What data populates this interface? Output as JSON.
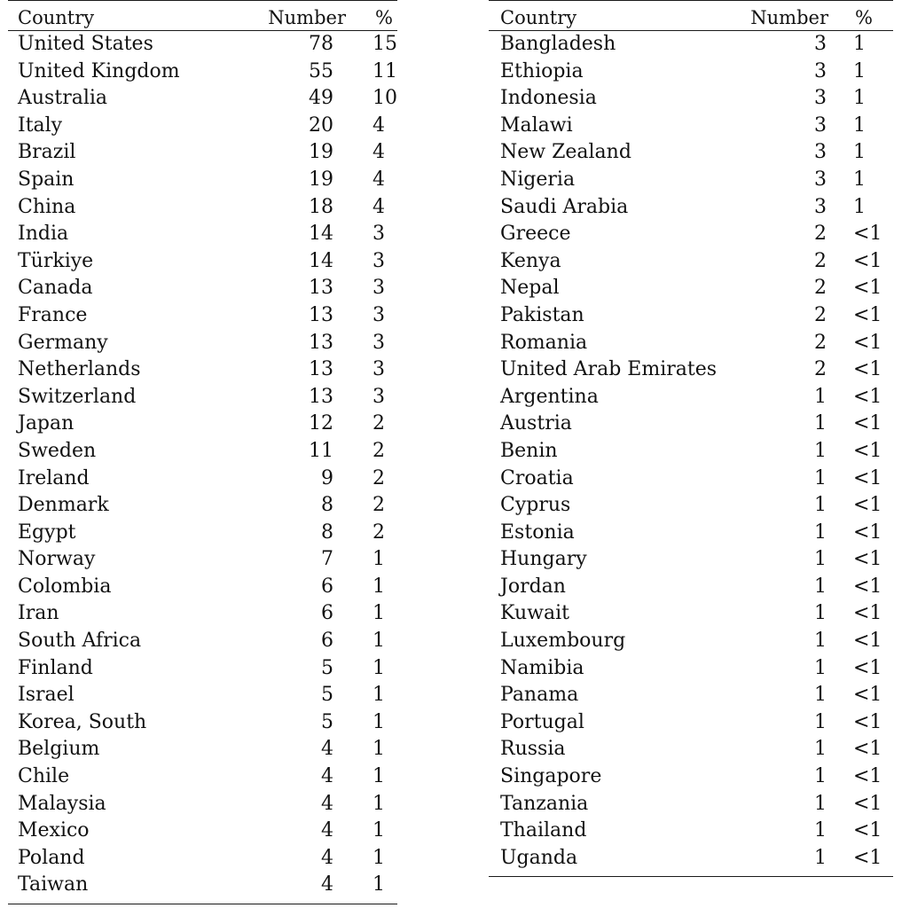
{
  "headers": {
    "country": "Country",
    "number": "Number",
    "percent": "%"
  },
  "left_rows": [
    {
      "country": "United States",
      "number": "78",
      "percent": "15"
    },
    {
      "country": "United Kingdom",
      "number": "55",
      "percent": "11"
    },
    {
      "country": "Australia",
      "number": "49",
      "percent": "10"
    },
    {
      "country": "Italy",
      "number": "20",
      "percent": "4"
    },
    {
      "country": "Brazil",
      "number": "19",
      "percent": "4"
    },
    {
      "country": "Spain",
      "number": "19",
      "percent": "4"
    },
    {
      "country": "China",
      "number": "18",
      "percent": "4"
    },
    {
      "country": "India",
      "number": "14",
      "percent": "3"
    },
    {
      "country": "Türkiye",
      "number": "14",
      "percent": "3"
    },
    {
      "country": "Canada",
      "number": "13",
      "percent": "3"
    },
    {
      "country": "France",
      "number": "13",
      "percent": "3"
    },
    {
      "country": "Germany",
      "number": "13",
      "percent": "3"
    },
    {
      "country": "Netherlands",
      "number": "13",
      "percent": "3"
    },
    {
      "country": "Switzerland",
      "number": "13",
      "percent": "3"
    },
    {
      "country": "Japan",
      "number": "12",
      "percent": "2"
    },
    {
      "country": "Sweden",
      "number": "11",
      "percent": "2"
    },
    {
      "country": "Ireland",
      "number": "9",
      "percent": "2"
    },
    {
      "country": "Denmark",
      "number": "8",
      "percent": "2"
    },
    {
      "country": "Egypt",
      "number": "8",
      "percent": "2"
    },
    {
      "country": "Norway",
      "number": "7",
      "percent": "1"
    },
    {
      "country": "Colombia",
      "number": "6",
      "percent": "1"
    },
    {
      "country": "Iran",
      "number": "6",
      "percent": "1"
    },
    {
      "country": "South Africa",
      "number": "6",
      "percent": "1"
    },
    {
      "country": "Finland",
      "number": "5",
      "percent": "1"
    },
    {
      "country": "Israel",
      "number": "5",
      "percent": "1"
    },
    {
      "country": "Korea, South",
      "number": "5",
      "percent": "1"
    },
    {
      "country": "Belgium",
      "number": "4",
      "percent": "1"
    },
    {
      "country": "Chile",
      "number": "4",
      "percent": "1"
    },
    {
      "country": "Malaysia",
      "number": "4",
      "percent": "1"
    },
    {
      "country": "Mexico",
      "number": "4",
      "percent": "1"
    },
    {
      "country": "Poland",
      "number": "4",
      "percent": "1"
    },
    {
      "country": "Taiwan",
      "number": "4",
      "percent": "1"
    }
  ],
  "right_rows": [
    {
      "country": "Bangladesh",
      "number": "3",
      "percent": "1"
    },
    {
      "country": "Ethiopia",
      "number": "3",
      "percent": "1"
    },
    {
      "country": "Indonesia",
      "number": "3",
      "percent": "1"
    },
    {
      "country": "Malawi",
      "number": "3",
      "percent": "1"
    },
    {
      "country": "New Zealand",
      "number": "3",
      "percent": "1"
    },
    {
      "country": "Nigeria",
      "number": "3",
      "percent": "1"
    },
    {
      "country": "Saudi Arabia",
      "number": "3",
      "percent": "1"
    },
    {
      "country": "Greece",
      "number": "2",
      "percent": "<1"
    },
    {
      "country": "Kenya",
      "number": "2",
      "percent": "<1"
    },
    {
      "country": "Nepal",
      "number": "2",
      "percent": "<1"
    },
    {
      "country": "Pakistan",
      "number": "2",
      "percent": "<1"
    },
    {
      "country": "Romania",
      "number": "2",
      "percent": "<1"
    },
    {
      "country": "United Arab Emirates",
      "number": "2",
      "percent": "<1"
    },
    {
      "country": "Argentina",
      "number": "1",
      "percent": "<1"
    },
    {
      "country": "Austria",
      "number": "1",
      "percent": "<1"
    },
    {
      "country": "Benin",
      "number": "1",
      "percent": "<1"
    },
    {
      "country": "Croatia",
      "number": "1",
      "percent": "<1"
    },
    {
      "country": "Cyprus",
      "number": "1",
      "percent": "<1"
    },
    {
      "country": "Estonia",
      "number": "1",
      "percent": "<1"
    },
    {
      "country": "Hungary",
      "number": "1",
      "percent": "<1"
    },
    {
      "country": "Jordan",
      "number": "1",
      "percent": "<1"
    },
    {
      "country": "Kuwait",
      "number": "1",
      "percent": "<1"
    },
    {
      "country": "Luxembourg",
      "number": "1",
      "percent": "<1"
    },
    {
      "country": "Namibia",
      "number": "1",
      "percent": "<1"
    },
    {
      "country": "Panama",
      "number": "1",
      "percent": "<1"
    },
    {
      "country": "Portugal",
      "number": "1",
      "percent": "<1"
    },
    {
      "country": "Russia",
      "number": "1",
      "percent": "<1"
    },
    {
      "country": "Singapore",
      "number": "1",
      "percent": "<1"
    },
    {
      "country": "Tanzania",
      "number": "1",
      "percent": "<1"
    },
    {
      "country": "Thailand",
      "number": "1",
      "percent": "<1"
    },
    {
      "country": "Uganda",
      "number": "1",
      "percent": "<1"
    }
  ]
}
